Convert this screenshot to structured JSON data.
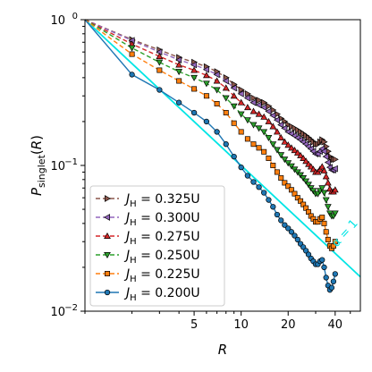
{
  "chart_data": {
    "type": "line",
    "x_scale": "log",
    "y_scale": "log",
    "xlim": [
      1,
      58
    ],
    "ylim": [
      0.01,
      1
    ],
    "xlabel": "R",
    "ylabel": "P_singlet(R)",
    "x_ticks": [
      5,
      10,
      20,
      40
    ],
    "x_tick_labels": [
      "5",
      "10",
      "20",
      "40"
    ],
    "y_ticks": [
      0.01,
      0.1,
      1
    ],
    "y_tick_labels": [
      "10",
      "10",
      "10"
    ],
    "y_tick_exponents": [
      "−2",
      "−1",
      "0"
    ],
    "grid": false,
    "legend_position": "lower-left",
    "x": [
      1,
      2,
      3,
      4,
      5,
      6,
      7,
      8,
      9,
      10,
      11,
      12,
      13,
      14,
      15,
      16,
      17,
      18,
      19,
      20,
      21,
      22,
      23,
      24,
      25,
      26,
      27,
      28,
      29,
      30,
      31,
      32,
      33,
      34,
      35,
      36,
      37,
      38,
      39,
      40
    ],
    "series": [
      {
        "name": "J_H = 0.325U",
        "label_main": "J",
        "label_sub": "H",
        "label_rest": " = 0.325U",
        "color": "#8c564b",
        "marker": "triangle-right",
        "values": [
          1.0,
          0.73,
          0.62,
          0.55,
          0.51,
          0.475,
          0.44,
          0.4,
          0.36,
          0.33,
          0.31,
          0.29,
          0.28,
          0.27,
          0.255,
          0.24,
          0.225,
          0.21,
          0.2,
          0.19,
          0.185,
          0.18,
          0.175,
          0.17,
          0.165,
          0.16,
          0.155,
          0.15,
          0.145,
          0.14,
          0.14,
          0.145,
          0.15,
          0.145,
          0.135,
          0.125,
          0.115,
          0.11,
          0.11,
          0.11
        ]
      },
      {
        "name": "J_H = 0.300U",
        "label_main": "J",
        "label_sub": "H",
        "label_rest": " = 0.300U",
        "color": "#9467bd",
        "marker": "triangle-left",
        "values": [
          1.0,
          0.72,
          0.6,
          0.53,
          0.49,
          0.455,
          0.42,
          0.38,
          0.34,
          0.31,
          0.29,
          0.27,
          0.26,
          0.25,
          0.235,
          0.22,
          0.205,
          0.19,
          0.18,
          0.17,
          0.165,
          0.16,
          0.155,
          0.15,
          0.145,
          0.14,
          0.135,
          0.13,
          0.125,
          0.12,
          0.12,
          0.125,
          0.13,
          0.125,
          0.115,
          0.105,
          0.097,
          0.093,
          0.093,
          0.095
        ]
      },
      {
        "name": "J_H = 0.275U",
        "label_main": "J",
        "label_sub": "H",
        "label_rest": " = 0.275U",
        "color": "#d62728",
        "marker": "triangle-up",
        "values": [
          1.0,
          0.68,
          0.56,
          0.49,
          0.45,
          0.415,
          0.38,
          0.34,
          0.3,
          0.27,
          0.25,
          0.235,
          0.225,
          0.215,
          0.2,
          0.185,
          0.17,
          0.155,
          0.145,
          0.138,
          0.132,
          0.127,
          0.122,
          0.117,
          0.112,
          0.107,
          0.102,
          0.098,
          0.094,
          0.09,
          0.09,
          0.094,
          0.098,
          0.092,
          0.084,
          0.076,
          0.069,
          0.066,
          0.066,
          0.068
        ]
      },
      {
        "name": "J_H = 0.250U",
        "label_main": "J",
        "label_sub": "H",
        "label_rest": " = 0.250U",
        "color": "#2ca02c",
        "marker": "triangle-down",
        "values": [
          1.0,
          0.64,
          0.51,
          0.44,
          0.4,
          0.365,
          0.33,
          0.29,
          0.255,
          0.225,
          0.205,
          0.19,
          0.18,
          0.17,
          0.155,
          0.14,
          0.128,
          0.118,
          0.11,
          0.104,
          0.099,
          0.094,
          0.09,
          0.086,
          0.082,
          0.078,
          0.074,
          0.07,
          0.067,
          0.064,
          0.064,
          0.067,
          0.07,
          0.065,
          0.058,
          0.052,
          0.047,
          0.045,
          0.045,
          0.047
        ]
      },
      {
        "name": "J_H = 0.225U",
        "label_main": "J",
        "label_sub": "H",
        "label_rest": " = 0.225U",
        "color": "#ff7f0e",
        "marker": "square",
        "values": [
          1.0,
          0.58,
          0.45,
          0.38,
          0.335,
          0.3,
          0.265,
          0.23,
          0.195,
          0.17,
          0.152,
          0.14,
          0.132,
          0.124,
          0.112,
          0.1,
          0.09,
          0.082,
          0.076,
          0.072,
          0.068,
          0.064,
          0.06,
          0.057,
          0.054,
          0.051,
          0.048,
          0.045,
          0.043,
          0.041,
          0.041,
          0.043,
          0.044,
          0.04,
          0.035,
          0.031,
          0.028,
          0.027,
          0.028,
          0.03
        ]
      },
      {
        "name": "J_H = 0.200U",
        "label_main": "J",
        "label_sub": "H",
        "label_rest": " = 0.200U",
        "color": "#1f77b4",
        "marker": "circle",
        "values": [
          1.0,
          0.42,
          0.33,
          0.27,
          0.23,
          0.2,
          0.17,
          0.14,
          0.115,
          0.097,
          0.085,
          0.077,
          0.071,
          0.065,
          0.058,
          0.052,
          0.046,
          0.042,
          0.039,
          0.037,
          0.035,
          0.033,
          0.031,
          0.029,
          0.0275,
          0.026,
          0.0245,
          0.023,
          0.022,
          0.021,
          0.021,
          0.022,
          0.0225,
          0.02,
          0.017,
          0.015,
          0.014,
          0.0145,
          0.016,
          0.018
        ]
      }
    ],
    "reference_line": {
      "color": "#00e5e5",
      "x": [
        1,
        58
      ],
      "y": [
        1,
        0.0172
      ]
    },
    "annotations": [
      {
        "text": "α = 1",
        "x": 48,
        "y": 0.033,
        "color": "#00e5e5"
      }
    ]
  }
}
